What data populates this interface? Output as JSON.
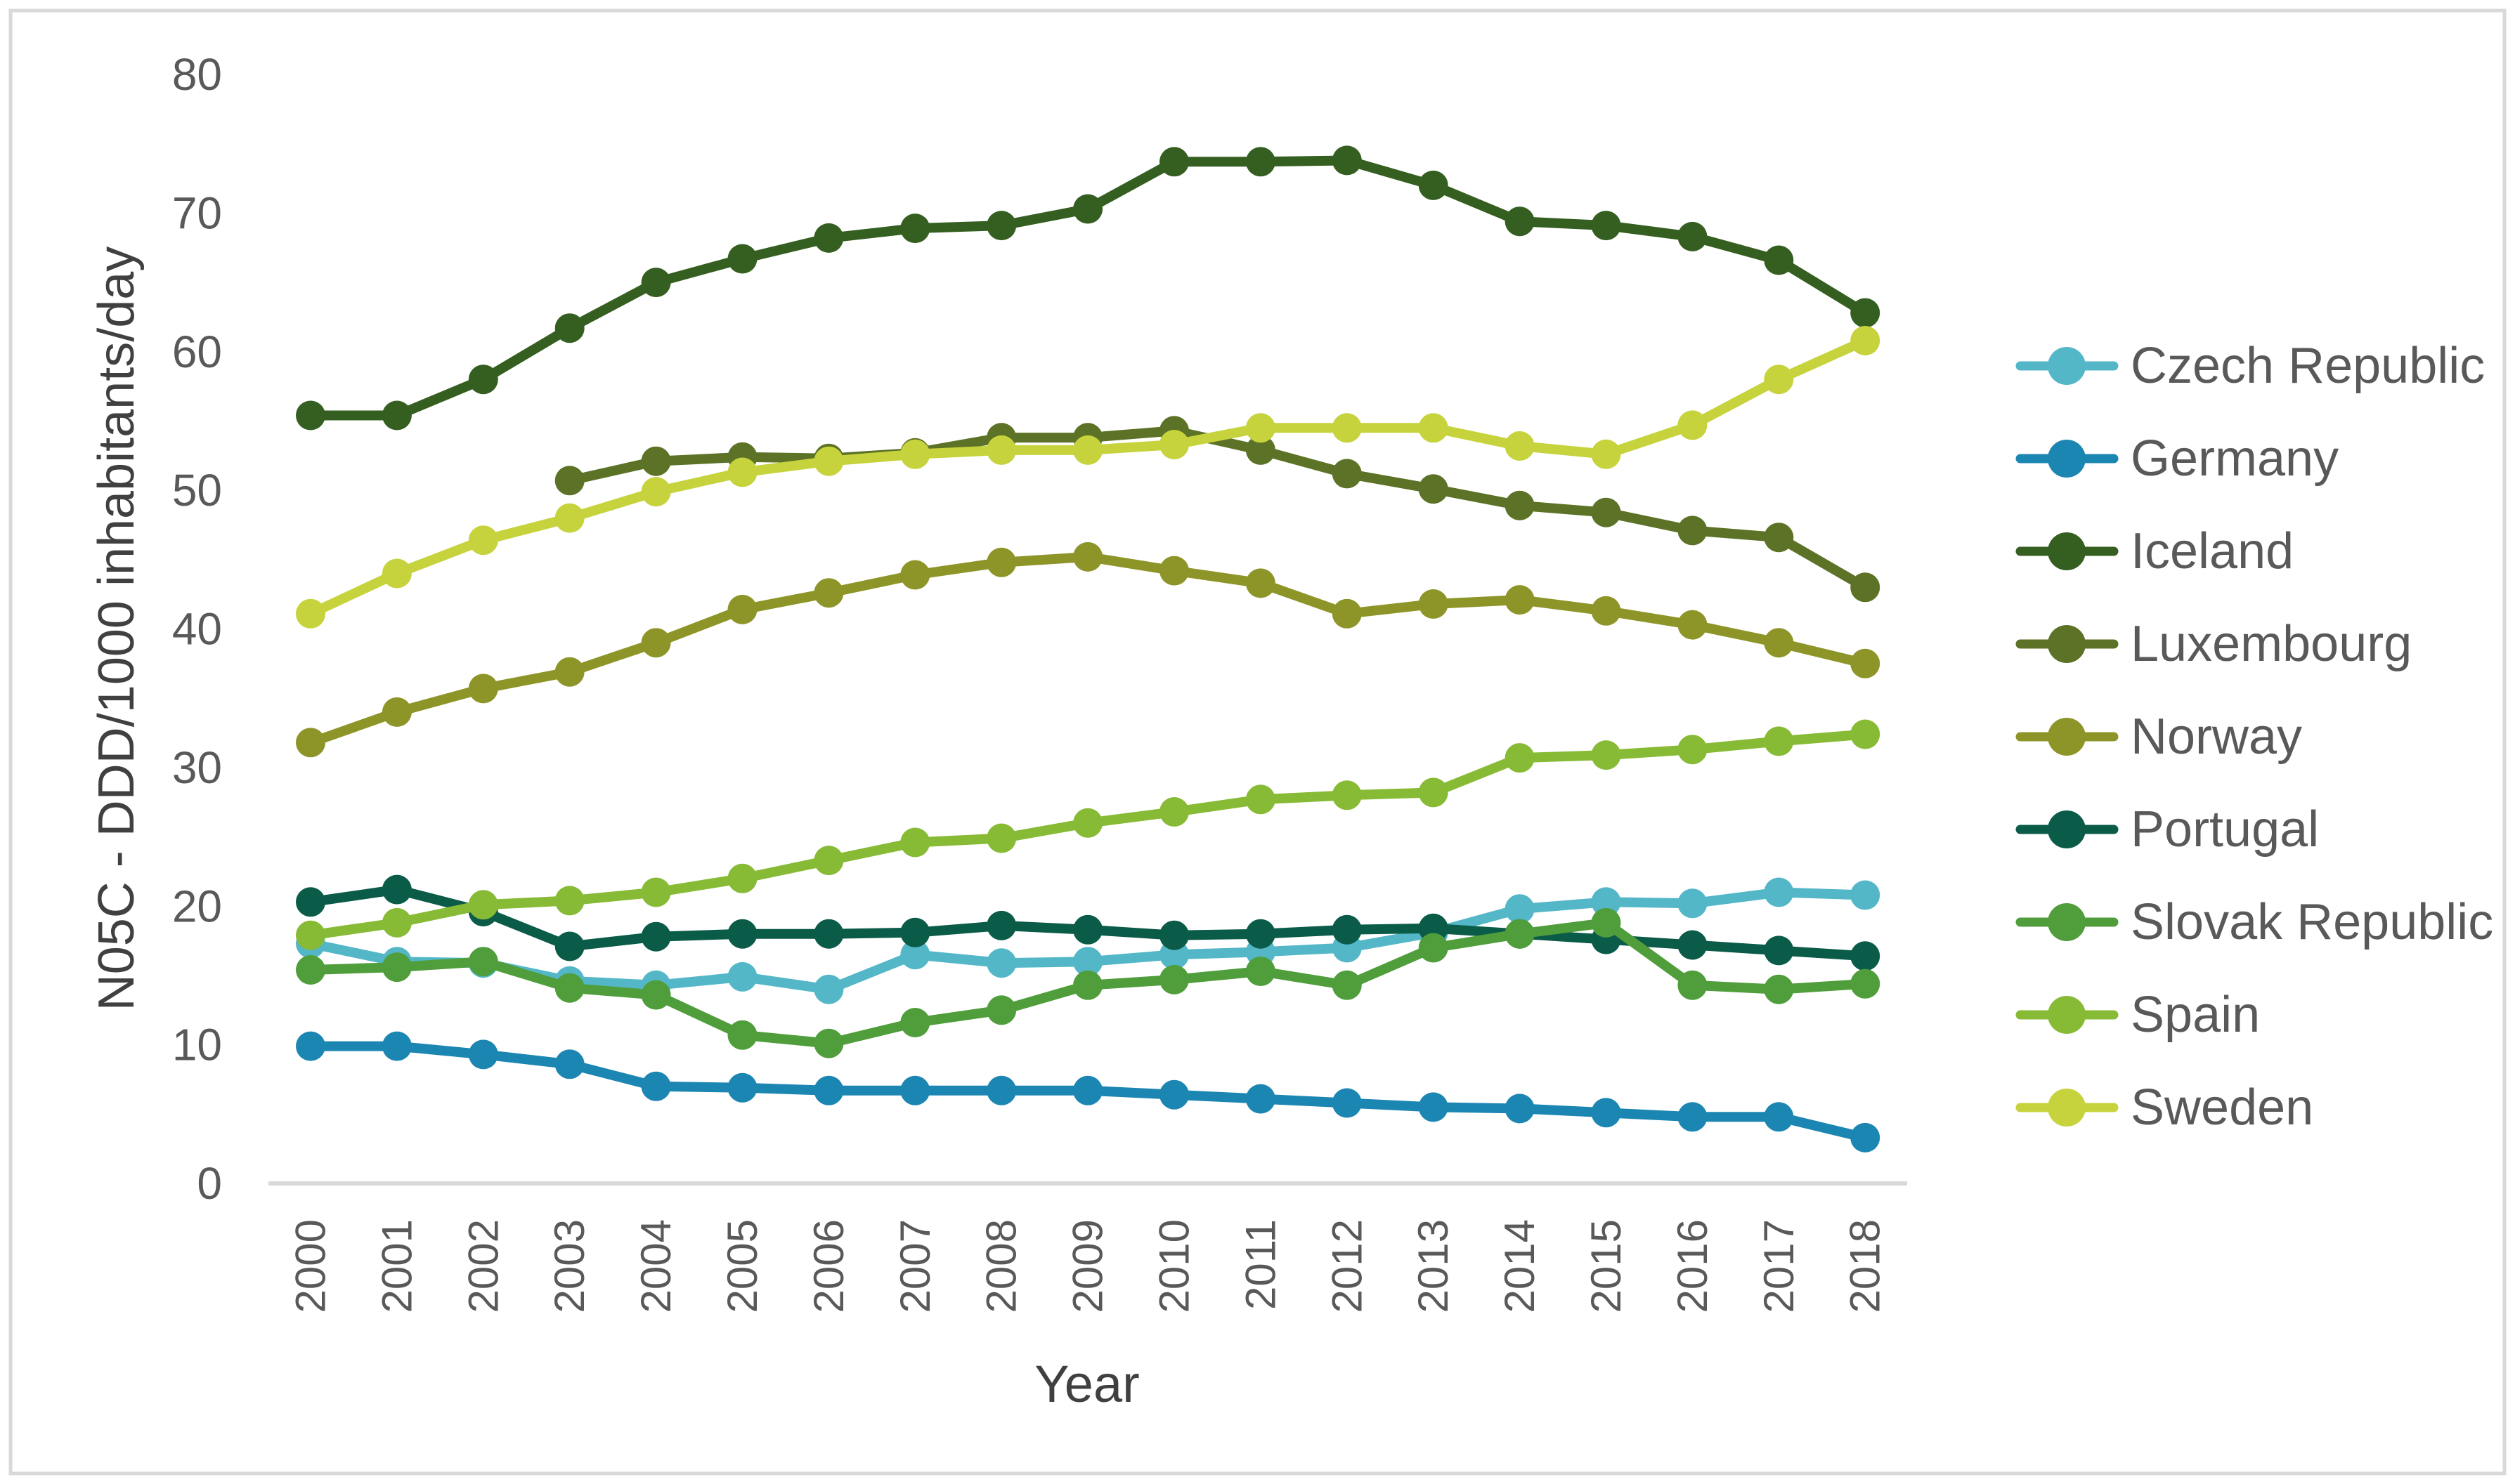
{
  "figure": {
    "y_axis_title": "N05C - DDD/1000 inhabitants/day",
    "x_axis_title": "Year"
  },
  "colors": {
    "background": "#ffffff",
    "frame_border": "#d9d9d9",
    "axis_line": "#d9d9d9",
    "tick_text": "#595959",
    "title_text": "#404040",
    "legend_text": "#595959"
  },
  "chart_data": {
    "type": "line",
    "title": "",
    "xlabel": "Year",
    "ylabel": "N05C - DDD/1000 inhabitants/day",
    "ylim": [
      0,
      80
    ],
    "y_ticks": [
      0,
      10,
      20,
      30,
      40,
      50,
      60,
      70,
      80
    ],
    "grid": false,
    "legend_position": "right",
    "marker": "circle",
    "x": [
      2000,
      2001,
      2002,
      2003,
      2004,
      2005,
      2006,
      2007,
      2008,
      2009,
      2010,
      2011,
      2012,
      2013,
      2014,
      2015,
      2016,
      2017,
      2018
    ],
    "series": [
      {
        "name": "Czech Republic",
        "color": "#54b7c8",
        "values": [
          17.3,
          16.0,
          15.9,
          14.6,
          14.3,
          14.9,
          14.0,
          16.5,
          15.9,
          16.0,
          16.5,
          16.7,
          17.0,
          18.1,
          19.8,
          20.3,
          20.2,
          21.0,
          20.8
        ]
      },
      {
        "name": "Germany",
        "color": "#1c86b2",
        "values": [
          9.9,
          9.9,
          9.3,
          8.6,
          7.0,
          6.9,
          6.7,
          6.7,
          6.7,
          6.7,
          6.4,
          6.1,
          5.8,
          5.5,
          5.4,
          5.1,
          4.8,
          4.8,
          3.3
        ]
      },
      {
        "name": "Iceland",
        "color": "#355f21",
        "values": [
          55.4,
          55.4,
          58.0,
          61.7,
          65.0,
          66.7,
          68.2,
          68.9,
          69.1,
          70.3,
          73.7,
          73.7,
          73.8,
          72.0,
          69.4,
          69.1,
          68.3,
          66.6,
          62.8
        ]
      },
      {
        "name": "Luxembourg",
        "color": "#5c7226",
        "values": [
          null,
          null,
          null,
          50.7,
          52.1,
          52.4,
          52.3,
          52.7,
          53.8,
          53.8,
          54.3,
          52.9,
          51.2,
          50.1,
          48.9,
          48.4,
          47.1,
          46.6,
          43.0
        ]
      },
      {
        "name": "Norway",
        "color": "#8e9528",
        "values": [
          31.8,
          34.0,
          35.7,
          36.9,
          39.0,
          41.4,
          42.6,
          43.9,
          44.8,
          45.2,
          44.2,
          43.3,
          41.1,
          41.8,
          42.1,
          41.3,
          40.3,
          39.0,
          37.5
        ]
      },
      {
        "name": "Portugal",
        "color": "#0b5b49",
        "values": [
          20.3,
          21.2,
          19.6,
          17.1,
          17.8,
          18.0,
          18.0,
          18.1,
          18.6,
          18.3,
          17.9,
          18.0,
          18.3,
          18.4,
          18.0,
          17.6,
          17.2,
          16.8,
          16.4
        ]
      },
      {
        "name": "Slovak Republic",
        "color": "#4f9e3b",
        "values": [
          15.4,
          15.6,
          16.0,
          14.1,
          13.6,
          10.7,
          10.1,
          11.6,
          12.5,
          14.3,
          14.7,
          15.3,
          14.3,
          17.0,
          18.0,
          18.8,
          14.3,
          14.0,
          14.4
        ]
      },
      {
        "name": "Spain",
        "color": "#87ba35",
        "values": [
          17.9,
          18.8,
          20.1,
          20.4,
          21.0,
          22.0,
          23.3,
          24.6,
          24.9,
          26.0,
          26.8,
          27.7,
          28.0,
          28.2,
          30.7,
          30.9,
          31.3,
          31.9,
          32.4
        ]
      },
      {
        "name": "Sweden",
        "color": "#c6d33c",
        "values": [
          41.1,
          44.0,
          46.4,
          48.0,
          49.9,
          51.3,
          52.1,
          52.6,
          52.9,
          52.9,
          53.3,
          54.5,
          54.5,
          54.5,
          53.2,
          52.6,
          54.7,
          58.0,
          60.8
        ]
      }
    ]
  }
}
